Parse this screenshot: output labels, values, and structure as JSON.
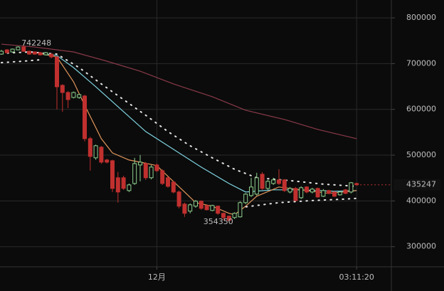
{
  "chart_data": {
    "type": "candlestick",
    "categories": [
      null,
      null,
      null,
      null,
      null,
      null,
      null,
      null,
      null,
      null,
      null,
      null,
      null,
      null,
      null,
      null,
      null,
      null,
      null,
      null,
      null,
      null,
      null,
      null,
      null,
      null,
      null,
      null,
      "12月",
      null,
      null,
      null,
      null,
      null,
      null,
      null,
      null,
      null,
      null,
      null,
      null,
      null,
      null,
      null,
      null,
      null,
      null,
      null,
      null,
      null,
      null,
      null,
      null,
      null,
      null,
      null,
      null,
      null,
      null,
      null,
      null,
      null,
      null,
      null,
      "03:11:20"
    ],
    "open": [
      720800,
      730100,
      725500,
      730100,
      736300,
      727000,
      725500,
      723900,
      719200,
      720800,
      714600,
      652500,
      636900,
      626100,
      626100,
      629200,
      536000,
      494100,
      517400,
      489400,
      487800,
      450600,
      450600,
      422600,
      438100,
      478500,
      481600,
      450600,
      478500,
      466100,
      450600,
      441200,
      419500,
      393100,
      377600,
      388500,
      399300,
      390000,
      379100,
      388500,
      372900,
      366700,
      363600,
      365200,
      396200,
      411700,
      414800,
      458300,
      427300,
      438100,
      445900,
      445900,
      419500,
      427300,
      407000,
      430400,
      419500,
      427300,
      410200,
      422600,
      419500,
      413300,
      424200,
      419500,
      438100
    ],
    "high": [
      730100,
      731700,
      733000,
      738000,
      742248,
      728500,
      727000,
      725500,
      725500,
      722400,
      716000,
      655000,
      640000,
      639000,
      634000,
      632000,
      540000,
      523000,
      520000,
      492000,
      490000,
      463000,
      455000,
      438000,
      494100,
      500300,
      484700,
      478500,
      481600,
      469200,
      453000,
      443000,
      422600,
      396200,
      394600,
      402000,
      401000,
      391500,
      391500,
      390000,
      374500,
      368000,
      375000,
      399300,
      417000,
      450600,
      461500,
      463000,
      446000,
      450600,
      469200,
      448000,
      430400,
      430400,
      431900,
      432000,
      428800,
      429000,
      425700,
      424200,
      421000,
      421000,
      425700,
      441200,
      439700
    ],
    "low": [
      719200,
      722400,
      724000,
      729000,
      725500,
      719200,
      719200,
      717700,
      717700,
      711500,
      600000,
      595000,
      602800,
      624000,
      623000,
      530000,
      466100,
      490000,
      481000,
      482000,
      419500,
      396200,
      424000,
      419500,
      435000,
      442800,
      445900,
      447000,
      463000,
      435000,
      428800,
      416400,
      383800,
      365200,
      372900,
      385000,
      380700,
      379100,
      377600,
      369800,
      357400,
      354350,
      360500,
      363600,
      393100,
      408600,
      411700,
      424200,
      424200,
      435000,
      435000,
      419500,
      416400,
      399300,
      404000,
      416400,
      416400,
      407000,
      408600,
      414800,
      408600,
      411700,
      414800,
      416400,
      433500
    ],
    "close": [
      727000,
      723900,
      731700,
      736300,
      727000,
      720800,
      720800,
      719200,
      723900,
      714600,
      649400,
      636900,
      621400,
      636900,
      632300,
      536000,
      497200,
      520500,
      484700,
      484700,
      427300,
      419500,
      427300,
      435000,
      481600,
      484700,
      450600,
      473900,
      466100,
      438100,
      431900,
      419500,
      388500,
      372900,
      391500,
      399300,
      383800,
      380700,
      390000,
      372900,
      363600,
      357400,
      372900,
      396200,
      414800,
      430400,
      450600,
      427300,
      442800,
      445900,
      438100,
      422600,
      427300,
      400800,
      428800,
      419500,
      425700,
      408600,
      422600,
      416400,
      410200,
      419500,
      416400,
      439700,
      435247
    ],
    "up_color": "#8fd18f",
    "down_color": "#c0302f",
    "lines": [
      {
        "color": "#7fd3e0",
        "style": "solid",
        "x": [
          5,
          10,
          13,
          17,
          21,
          26,
          31,
          36,
          41,
          44,
          49,
          54,
          60,
          64
        ],
        "values": [
          727000,
          717700,
          691300,
          649400,
          605900,
          551500,
          512700,
          473900,
          438100,
          419500,
          424200,
          424200,
          421000,
          422600
        ]
      },
      {
        "color": "#e0955a",
        "style": "solid",
        "x": [
          5,
          10,
          13,
          15,
          18,
          20,
          23,
          25,
          28,
          30,
          33,
          35,
          38,
          41,
          42,
          44,
          46,
          50,
          54,
          59,
          64
        ],
        "values": [
          727000,
          714600,
          660200,
          609000,
          536000,
          504900,
          489400,
          484700,
          477000,
          453700,
          419500,
          396200,
          388500,
          372900,
          369800,
          388500,
          410200,
          430400,
          424200,
          416400,
          422600
        ]
      },
      {
        "color": "#e6e6e6",
        "style": "dotted",
        "x": [
          0,
          5,
          10,
          14,
          18,
          22,
          26,
          30,
          34,
          38,
          42,
          46,
          52,
          58,
          64
        ],
        "values": [
          722400,
          725500,
          720800,
          691300,
          655600,
          621400,
          587200,
          551500,
          520500,
          494100,
          469200,
          450600,
          444400,
          436600,
          431900
        ]
      },
      {
        "color": "#e6e6e6",
        "style": "dotted",
        "x": [
          0,
          4,
          7,
          9,
          43,
          50,
          56,
          62,
          64
        ],
        "values": [
          702200,
          705300,
          708400,
          null,
          385400,
          396200,
          400800,
          404000,
          405600
        ]
      },
      {
        "color": "#8a3a4a",
        "style": "solid",
        "x": [
          0,
          6,
          13,
          19,
          25,
          31,
          38,
          44,
          51,
          57,
          64
        ],
        "values": [
          742500,
          736300,
          725500,
          705300,
          683500,
          655600,
          627600,
          598100,
          577900,
          556200,
          536000
        ]
      }
    ],
    "ylim": [
      256000,
      839000
    ],
    "yticks": [
      300000,
      400000,
      500000,
      600000,
      700000,
      800000
    ],
    "grid": true
  }
}
